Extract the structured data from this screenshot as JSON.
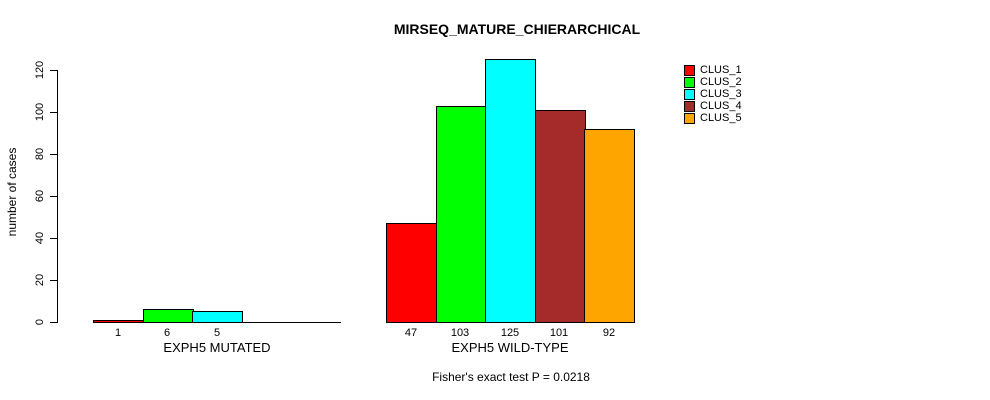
{
  "chart_data": {
    "type": "bar",
    "title": "MIRSEQ_MATURE_CHIERARCHICAL",
    "ylabel": "number of cases",
    "xlabel": "",
    "ylim": [
      0,
      125
    ],
    "yticks": [
      0,
      20,
      40,
      60,
      80,
      100,
      120
    ],
    "grid": false,
    "legend_position": "top-right",
    "categories": [
      "EXPH5 MUTATED",
      "EXPH5 WILD-TYPE"
    ],
    "series": [
      {
        "name": "CLUS_1",
        "color": "#ff0000",
        "values": [
          1,
          47
        ]
      },
      {
        "name": "CLUS_2",
        "color": "#00ff00",
        "values": [
          6,
          103
        ]
      },
      {
        "name": "CLUS_3",
        "color": "#00ffff",
        "values": [
          5,
          125
        ]
      },
      {
        "name": "CLUS_4",
        "color": "#a52a2a",
        "values": [
          0,
          101
        ]
      },
      {
        "name": "CLUS_5",
        "color": "#ffa500",
        "values": [
          0,
          92
        ]
      }
    ],
    "bar_value_labels": [
      [
        "1",
        "6",
        "5",
        "",
        ""
      ],
      [
        "47",
        "103",
        "125",
        "101",
        "92"
      ]
    ],
    "footnote": "Fisher's exact test P = 0.0218"
  }
}
